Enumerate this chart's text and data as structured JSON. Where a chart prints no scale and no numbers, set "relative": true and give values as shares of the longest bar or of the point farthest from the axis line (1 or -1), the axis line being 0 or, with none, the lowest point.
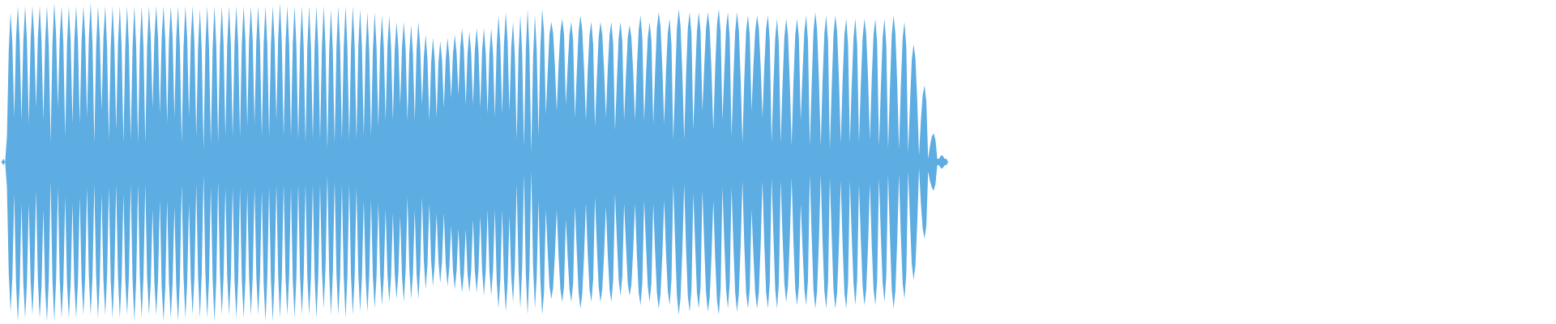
{
  "chart_data": {
    "type": "area",
    "relative": true,
    "categories": [
      null,
      null,
      null,
      null,
      null,
      null,
      null,
      null,
      null,
      null,
      null,
      null,
      null,
      null,
      null,
      null,
      null,
      null,
      null,
      null,
      null,
      null,
      null,
      null,
      null,
      null,
      null,
      null,
      null,
      null,
      null,
      null,
      null,
      null,
      null,
      null,
      null,
      null,
      null,
      null,
      null,
      null,
      null,
      null,
      null,
      null,
      null,
      null,
      null,
      null,
      null,
      null,
      null,
      null,
      null,
      null,
      null,
      null,
      null,
      null,
      null,
      null,
      null,
      null,
      null,
      null,
      null,
      null,
      null,
      null,
      null,
      null,
      null,
      null,
      null,
      null,
      null,
      null,
      null,
      null,
      null,
      null,
      null,
      null,
      null,
      null,
      null,
      null,
      null,
      null,
      null,
      null,
      null,
      null,
      null,
      null,
      null,
      null,
      null,
      null,
      null,
      null,
      null,
      null,
      null,
      null,
      null,
      null,
      null,
      null,
      null,
      null,
      null,
      null,
      null,
      null,
      null,
      null,
      null,
      null,
      null,
      null,
      null,
      null,
      null,
      null,
      null,
      null,
      null,
      null,
      null,
      null,
      null,
      null,
      null,
      null,
      null,
      null,
      null,
      null,
      null,
      null,
      null,
      null,
      null,
      null,
      null,
      null,
      null,
      null,
      null,
      null,
      null,
      null,
      null,
      null,
      null,
      null,
      null,
      null,
      null,
      null,
      null,
      null,
      null,
      null,
      null,
      null,
      null,
      null,
      null,
      null,
      null,
      null,
      null,
      null,
      null,
      null,
      null,
      null,
      null,
      null,
      null,
      null,
      null,
      null,
      null,
      null,
      null,
      null,
      null,
      null,
      null,
      null,
      null,
      null,
      null,
      null,
      null,
      null,
      null,
      null,
      null,
      null,
      null,
      null,
      null,
      null,
      null,
      null,
      null,
      null,
      null,
      null,
      null,
      null,
      null,
      null,
      null,
      null,
      null,
      null,
      null,
      null,
      null,
      null,
      null,
      null,
      null,
      null,
      null,
      null,
      null,
      null,
      null,
      null,
      null,
      null,
      null,
      null,
      null,
      null,
      null,
      null,
      null,
      null,
      null,
      null,
      null,
      null,
      null,
      null,
      null,
      null,
      null,
      null,
      null,
      null,
      null,
      null,
      null,
      null,
      null,
      null,
      null,
      null,
      null,
      null,
      null,
      null,
      null,
      null,
      null,
      null,
      null,
      null,
      null,
      null,
      null,
      null,
      null,
      null,
      null,
      null,
      null,
      null,
      null,
      null,
      null,
      null,
      null,
      null,
      null,
      null,
      null,
      null,
      null,
      null,
      null,
      null,
      null,
      null,
      null,
      null,
      null,
      null,
      null,
      null,
      null,
      null,
      null,
      null,
      null,
      null,
      null,
      null,
      null,
      null,
      null,
      null,
      null,
      null,
      null,
      null,
      null,
      null,
      null,
      null,
      null,
      null,
      null,
      null,
      null,
      null,
      null,
      null,
      null,
      null,
      null,
      null,
      null,
      null,
      null,
      null,
      null,
      null,
      null,
      null,
      null,
      null,
      null,
      null,
      null,
      null,
      null,
      null,
      null,
      null,
      null,
      null,
      null,
      null,
      null,
      null,
      null,
      null,
      null,
      null,
      null,
      null,
      null,
      null,
      null,
      null,
      null,
      null,
      null,
      null,
      null,
      null,
      null,
      null,
      null,
      null,
      null,
      null,
      null,
      null,
      null,
      null,
      null,
      null,
      null,
      null,
      null,
      null,
      null,
      null,
      null,
      null,
      null,
      null,
      null,
      null,
      null,
      null,
      null,
      null,
      null,
      null,
      null,
      null,
      null,
      null,
      null,
      null,
      null,
      null,
      null,
      null,
      null,
      null,
      null,
      null,
      null,
      null,
      null,
      null,
      null,
      null,
      null,
      null,
      null,
      null,
      null,
      null,
      null,
      null,
      null,
      null,
      null,
      null,
      null,
      null,
      null,
      null,
      null,
      null,
      null,
      null,
      null,
      null,
      null,
      null,
      null,
      null,
      null,
      null,
      null,
      null,
      null,
      null,
      null,
      null,
      null,
      null,
      null,
      null,
      null,
      null,
      null,
      null,
      null,
      null,
      null,
      null,
      null,
      null,
      null,
      null,
      null,
      null,
      null,
      null,
      null,
      null,
      null,
      null,
      null,
      null,
      null,
      null,
      null,
      null,
      null,
      null,
      null,
      null,
      null,
      null,
      null,
      null,
      null,
      null,
      null,
      null,
      null,
      null,
      null,
      null,
      null,
      null,
      null,
      null,
      null,
      null,
      null,
      null,
      null,
      null,
      null
    ],
    "series": [
      {
        "color": "#5dade2",
        "values": [
          0,
          0.02,
          0,
          0.16,
          0.7,
          0.94,
          0.74,
          0.28,
          0.78,
          0.98,
          0.76,
          0.26,
          0.76,
          0.98,
          0.76,
          0.24,
          0.76,
          0.98,
          0.78,
          0.34,
          0.78,
          0.98,
          0.76,
          0.26,
          0.76,
          0.98,
          0.72,
          0.12,
          0.74,
          1,
          0.8,
          0.34,
          0.78,
          0.98,
          0.74,
          0.16,
          0.74,
          0.98,
          0.76,
          0.24,
          0.76,
          0.98,
          0.76,
          0.24,
          0.76,
          0.98,
          0.78,
          0.28,
          0.78,
          1,
          0.74,
          0.12,
          0.72,
          0.98,
          0.78,
          0.32,
          0.78,
          0.98,
          0.72,
          0.14,
          0.72,
          0.98,
          0.74,
          0.2,
          0.74,
          0.98,
          0.72,
          0.12,
          0.72,
          0.98,
          0.72,
          0.14,
          0.72,
          0.98,
          0.72,
          0.12,
          0.72,
          0.98,
          0.72,
          0.12,
          0.72,
          0.98,
          0.78,
          0.34,
          0.78,
          0.98,
          0.78,
          0.3,
          0.78,
          0.98,
          0.76,
          0.24,
          0.76,
          0.98,
          0.78,
          0.28,
          0.78,
          0.98,
          0.72,
          0.12,
          0.72,
          0.98,
          0.78,
          0.28,
          0.78,
          0.98,
          0.74,
          0.16,
          0.72,
          0.96,
          0.7,
          0.08,
          0.72,
          0.98,
          0.72,
          0.12,
          0.72,
          0.98,
          0.72,
          0.12,
          0.72,
          0.98,
          0.74,
          0.16,
          0.74,
          0.98,
          0.74,
          0.16,
          0.74,
          0.98,
          0.74,
          0.16,
          0.74,
          0.98,
          0.76,
          0.22,
          0.76,
          0.98,
          0.76,
          0.24,
          0.76,
          0.98,
          0.74,
          0.16,
          0.74,
          0.98,
          0.74,
          0.16,
          0.74,
          0.98,
          0.76,
          0.26,
          0.78,
          1,
          0.74,
          0.16,
          0.74,
          0.98,
          0.74,
          0.16,
          0.74,
          0.98,
          0.72,
          0.14,
          0.72,
          0.98,
          0.72,
          0.12,
          0.72,
          0.98,
          0.72,
          0.14,
          0.72,
          0.98,
          0.72,
          0.14,
          0.72,
          0.98,
          0.72,
          0.08,
          0.7,
          0.96,
          0.7,
          0.12,
          0.72,
          0.98,
          0.72,
          0.14,
          0.72,
          0.98,
          0.72,
          0.14,
          0.72,
          0.98,
          0.72,
          0.14,
          0.72,
          0.96,
          0.72,
          0.16,
          0.7,
          0.94,
          0.7,
          0.16,
          0.7,
          0.94,
          0.72,
          0.22,
          0.72,
          0.92,
          0.72,
          0.26,
          0.72,
          0.92,
          0.72,
          0.26,
          0.7,
          0.88,
          0.72,
          0.36,
          0.72,
          0.88,
          0.7,
          0.26,
          0.68,
          0.86,
          0.68,
          0.26,
          0.7,
          0.88,
          0.72,
          0.36,
          0.66,
          0.8,
          0.64,
          0.26,
          0.62,
          0.78,
          0.64,
          0.28,
          0.62,
          0.76,
          0.64,
          0.34,
          0.64,
          0.78,
          0.66,
          0.4,
          0.68,
          0.8,
          0.68,
          0.42,
          0.72,
          0.84,
          0.7,
          0.36,
          0.68,
          0.82,
          0.68,
          0.36,
          0.7,
          0.84,
          0.7,
          0.34,
          0.7,
          0.84,
          0.68,
          0.3,
          0.68,
          0.84,
          0.68,
          0.28,
          0.72,
          0.92,
          0.74,
          0.3,
          0.74,
          0.94,
          0.76,
          0.32,
          0.72,
          0.88,
          0.66,
          0.14,
          0.68,
          0.92,
          0.68,
          0.1,
          0.7,
          0.96,
          0.7,
          0.06,
          0.66,
          0.92,
          0.7,
          0.16,
          0.72,
          0.96,
          0.82,
          0.3,
          0.56,
          0.8,
          0.88,
          0.81,
          0.6,
          0.32,
          0.61,
          0.82,
          0.9,
          0.8,
          0.36,
          0.6,
          0.8,
          0.88,
          0.76,
          0.28,
          0.56,
          0.82,
          0.92,
          0.83,
          0.59,
          0.26,
          0.57,
          0.8,
          0.88,
          0.74,
          0.22,
          0.52,
          0.78,
          0.88,
          0.8,
          0.58,
          0.28,
          0.58,
          0.8,
          0.88,
          0.74,
          0.2,
          0.5,
          0.78,
          0.88,
          0.76,
          0.26,
          0.54,
          0.78,
          0.86,
          0.78,
          0.56,
          0.26,
          0.59,
          0.83,
          0.92,
          0.78,
          0.26,
          0.54,
          0.78,
          0.88,
          0.76,
          0.24,
          0.56,
          0.84,
          0.94,
          0.85,
          0.59,
          0.24,
          0.57,
          0.81,
          0.9,
          0.74,
          0.14,
          0.5,
          0.84,
          0.96,
          0.85,
          0.55,
          0.14,
          0.54,
          0.84,
          0.94,
          0.8,
          0.2,
          0.54,
          0.82,
          0.94,
          0.82,
          0.32,
          0.6,
          0.84,
          0.94,
          0.84,
          0.57,
          0.2,
          0.58,
          0.86,
          0.96,
          0.82,
          0.26,
          0.56,
          0.84,
          0.94,
          0.78,
          0.16,
          0.52,
          0.82,
          0.94,
          0.83,
          0.53,
          0.12,
          0.52,
          0.82,
          0.92,
          0.8,
          0.32,
          0.6,
          0.82,
          0.92,
          0.84,
          0.6,
          0.28,
          0.6,
          0.84,
          0.92,
          0.76,
          0.12,
          0.48,
          0.78,
          0.9,
          0.74,
          0.12,
          0.48,
          0.78,
          0.9,
          0.8,
          0.5,
          0.1,
          0.5,
          0.8,
          0.9,
          0.78,
          0.26,
          0.56,
          0.82,
          0.92,
          0.76,
          0.1,
          0.48,
          0.82,
          0.94,
          0.83,
          0.52,
          0.1,
          0.51,
          0.81,
          0.92,
          0.76,
          0.08,
          0.46,
          0.8,
          0.92,
          0.82,
          0.52,
          0.12,
          0.51,
          0.8,
          0.9,
          0.74,
          0.12,
          0.48,
          0.78,
          0.9,
          0.74,
          0.12,
          0.48,
          0.78,
          0.9,
          0.8,
          0.52,
          0.14,
          0.52,
          0.8,
          0.9,
          0.74,
          0.1,
          0.46,
          0.78,
          0.9,
          0.74,
          0.08,
          0.46,
          0.8,
          0.92,
          0.81,
          0.5,
          0.08,
          0.48,
          0.78,
          0.88,
          0.72,
          0.06,
          0.36,
          0.64,
          0.74,
          0.65,
          0.39,
          0.04,
          0.26,
          0.42,
          0.48,
          0.38,
          0.02,
          0.1,
          0.16,
          0.18,
          0.14,
          0.02,
          0.02,
          0.04,
          0.04,
          0.02,
          0.02,
          0
        ]
      },
      {
        "color": "#5dade2",
        "values": [
          0,
          -0.02,
          0,
          -0.16,
          -0.7,
          -0.94,
          -0.72,
          -0.2,
          -0.76,
          -1,
          -0.78,
          -0.26,
          -0.76,
          -0.98,
          -0.76,
          -0.26,
          -0.74,
          -0.96,
          -0.72,
          -0.18,
          -0.74,
          -0.98,
          -0.78,
          -0.3,
          -0.8,
          -1,
          -0.74,
          -0.12,
          -0.74,
          -1,
          -0.74,
          -0.16,
          -0.74,
          -0.98,
          -0.76,
          -0.22,
          -0.76,
          -0.98,
          -0.76,
          -0.26,
          -0.76,
          -0.98,
          -0.76,
          -0.22,
          -0.74,
          -0.96,
          -0.72,
          -0.16,
          -0.72,
          -0.96,
          -0.72,
          -0.14,
          -0.72,
          -0.98,
          -0.74,
          -0.2,
          -0.74,
          -0.96,
          -0.72,
          -0.16,
          -0.74,
          -0.98,
          -0.72,
          -0.14,
          -0.72,
          -0.98,
          -0.74,
          -0.2,
          -0.74,
          -0.96,
          -0.72,
          -0.14,
          -0.74,
          -1,
          -0.74,
          -0.14,
          -0.72,
          -0.98,
          -0.72,
          -0.14,
          -0.72,
          -0.96,
          -0.76,
          -0.3,
          -0.76,
          -0.96,
          -0.74,
          -0.24,
          -0.78,
          -1,
          -0.78,
          -0.24,
          -0.76,
          -0.98,
          -0.76,
          -0.28,
          -0.78,
          -1,
          -0.74,
          -0.14,
          -0.72,
          -0.98,
          -0.76,
          -0.26,
          -0.74,
          -0.96,
          -0.72,
          -0.14,
          -0.72,
          -0.98,
          -0.7,
          -0.08,
          -0.7,
          -0.98,
          -0.74,
          -0.16,
          -0.74,
          -1,
          -0.74,
          -0.12,
          -0.7,
          -0.96,
          -0.72,
          -0.16,
          -0.72,
          -0.96,
          -0.72,
          -0.16,
          -0.74,
          -0.98,
          -0.74,
          -0.16,
          -0.74,
          -0.98,
          -0.74,
          -0.18,
          -0.72,
          -0.96,
          -0.72,
          -0.16,
          -0.72,
          -0.96,
          -0.72,
          -0.18,
          -0.76,
          -1,
          -0.74,
          -0.16,
          -0.74,
          -1,
          -0.74,
          -0.14,
          -0.72,
          -0.98,
          -0.72,
          -0.14,
          -0.72,
          -0.96,
          -0.72,
          -0.16,
          -0.74,
          -0.98,
          -0.72,
          -0.14,
          -0.72,
          -0.96,
          -0.72,
          -0.14,
          -0.72,
          -0.96,
          -0.72,
          -0.14,
          -0.72,
          -0.98,
          -0.72,
          -0.14,
          -0.68,
          -0.92,
          -0.66,
          -0.08,
          -0.7,
          -0.96,
          -0.7,
          -0.12,
          -0.7,
          -0.96,
          -0.72,
          -0.14,
          -0.72,
          -0.98,
          -0.72,
          -0.14,
          -0.72,
          -0.96,
          -0.72,
          -0.16,
          -0.7,
          -0.94,
          -0.72,
          -0.24,
          -0.72,
          -0.94,
          -0.72,
          -0.24,
          -0.72,
          -0.92,
          -0.72,
          -0.26,
          -0.7,
          -0.9,
          -0.72,
          -0.3,
          -0.7,
          -0.88,
          -0.72,
          -0.32,
          -0.7,
          -0.86,
          -0.7,
          -0.34,
          -0.72,
          -0.88,
          -0.68,
          -0.22,
          -0.66,
          -0.86,
          -0.7,
          -0.3,
          -0.7,
          -0.86,
          -0.66,
          -0.22,
          -0.62,
          -0.8,
          -0.64,
          -0.26,
          -0.62,
          -0.78,
          -0.64,
          -0.32,
          -0.62,
          -0.76,
          -0.62,
          -0.32,
          -0.64,
          -0.78,
          -0.66,
          -0.4,
          -0.68,
          -0.8,
          -0.68,
          -0.42,
          -0.7,
          -0.82,
          -0.7,
          -0.42,
          -0.7,
          -0.82,
          -0.68,
          -0.36,
          -0.68,
          -0.82,
          -0.68,
          -0.34,
          -0.68,
          -0.84,
          -0.68,
          -0.3,
          -0.68,
          -0.84,
          -0.68,
          -0.3,
          -0.74,
          -0.92,
          -0.74,
          -0.3,
          -0.74,
          -0.94,
          -0.76,
          -0.34,
          -0.72,
          -0.88,
          -0.66,
          -0.14,
          -0.68,
          -0.92,
          -0.66,
          -0.08,
          -0.7,
          -0.96,
          -0.68,
          -0.06,
          -0.66,
          -0.92,
          -0.72,
          -0.24,
          -0.74,
          -0.96,
          -0.82,
          -0.3,
          -0.56,
          -0.78,
          -0.86,
          -0.79,
          -0.58,
          -0.3,
          -0.59,
          -0.8,
          -0.88,
          -0.78,
          -0.36,
          -0.6,
          -0.8,
          -0.88,
          -0.76,
          -0.28,
          -0.56,
          -0.82,
          -0.92,
          -0.83,
          -0.59,
          -0.26,
          -0.57,
          -0.8,
          -0.88,
          -0.74,
          -0.22,
          -0.52,
          -0.78,
          -0.88,
          -0.8,
          -0.58,
          -0.28,
          -0.58,
          -0.8,
          -0.88,
          -0.74,
          -0.2,
          -0.48,
          -0.74,
          -0.84,
          -0.72,
          -0.26,
          -0.52,
          -0.76,
          -0.84,
          -0.77,
          -0.55,
          -0.26,
          -0.58,
          -0.82,
          -0.9,
          -0.76,
          -0.24,
          -0.52,
          -0.78,
          -0.88,
          -0.76,
          -0.26,
          -0.56,
          -0.82,
          -0.92,
          -0.83,
          -0.58,
          -0.24,
          -0.57,
          -0.81,
          -0.9,
          -0.74,
          -0.14,
          -0.5,
          -0.84,
          -0.96,
          -0.85,
          -0.55,
          -0.14,
          -0.54,
          -0.84,
          -0.94,
          -0.8,
          -0.2,
          -0.52,
          -0.82,
          -0.92,
          -0.78,
          -0.18,
          -0.52,
          -0.82,
          -0.94,
          -0.85,
          -0.59,
          -0.24,
          -0.6,
          -0.87,
          -0.96,
          -0.8,
          -0.16,
          -0.5,
          -0.8,
          -0.92,
          -0.76,
          -0.16,
          -0.52,
          -0.82,
          -0.94,
          -0.83,
          -0.53,
          -0.12,
          -0.52,
          -0.82,
          -0.92,
          -0.8,
          -0.3,
          -0.58,
          -0.82,
          -0.92,
          -0.82,
          -0.52,
          -0.12,
          -0.52,
          -0.82,
          -0.92,
          -0.76,
          -0.1,
          -0.46,
          -0.8,
          -0.92,
          -0.76,
          -0.12,
          -0.46,
          -0.76,
          -0.88,
          -0.78,
          -0.49,
          -0.1,
          -0.5,
          -0.8,
          -0.9,
          -0.78,
          -0.26,
          -0.54,
          -0.8,
          -0.9,
          -0.74,
          -0.08,
          -0.46,
          -0.8,
          -0.92,
          -0.81,
          -0.5,
          -0.08,
          -0.5,
          -0.81,
          -0.92,
          -0.76,
          -0.1,
          -0.46,
          -0.8,
          -0.92,
          -0.82,
          -0.52,
          -0.12,
          -0.52,
          -0.82,
          -0.92,
          -0.76,
          -0.12,
          -0.46,
          -0.76,
          -0.9,
          -0.74,
          -0.14,
          -0.48,
          -0.78,
          -0.9,
          -0.8,
          -0.52,
          -0.14,
          -0.52,
          -0.8,
          -0.9,
          -0.74,
          -0.1,
          -0.46,
          -0.76,
          -0.88,
          -0.72,
          -0.08,
          -0.46,
          -0.8,
          -0.92,
          -0.81,
          -0.5,
          -0.08,
          -0.47,
          -0.76,
          -0.86,
          -0.7,
          -0.06,
          -0.36,
          -0.64,
          -0.74,
          -0.65,
          -0.39,
          -0.04,
          -0.26,
          -0.42,
          -0.48,
          -0.4,
          -0.06,
          -0.12,
          -0.16,
          -0.18,
          -0.14,
          -0.02,
          -0.02,
          -0.04,
          -0.04,
          -0.02,
          -0.02,
          0
        ]
      }
    ]
  }
}
